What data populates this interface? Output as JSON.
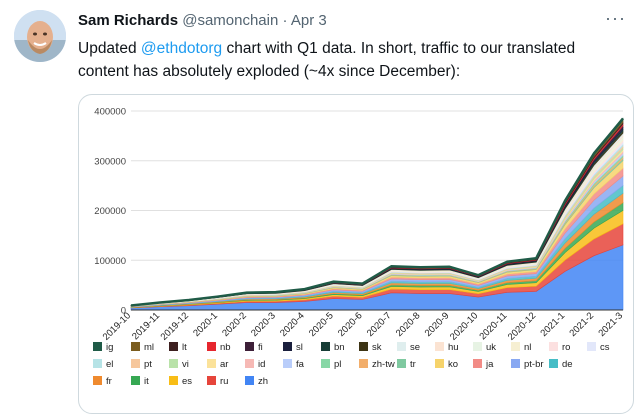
{
  "tweet": {
    "author_name": "Sam Richards",
    "handle": "@samonchain",
    "separator": " · ",
    "date": "Apr 3",
    "more_label": "···",
    "text_before": "Updated ",
    "mention": "@ethdotorg",
    "text_after": " chart with Q1 data. In short, traffic to our translated content has absolutely exploded (~4x since December):"
  },
  "colors": {
    "link": "#1d9bf0",
    "muted": "#536471",
    "border": "#cfd9de"
  },
  "chart_data": {
    "type": "area",
    "stacked": true,
    "x": [
      "2019-10",
      "2019-11",
      "2019-12",
      "2020-1",
      "2020-2",
      "2020-3",
      "2020-4",
      "2020-5",
      "2020-6",
      "2020-7",
      "2020-8",
      "2020-9",
      "2020-10",
      "2020-11",
      "2020-12",
      "2021-1",
      "2021-2",
      "2021-3"
    ],
    "ylim": [
      0,
      400000
    ],
    "yticks": [
      "0",
      "100000",
      "200000",
      "300000",
      "400000"
    ],
    "grid": true,
    "legend_position": "bottom",
    "total": [
      9000,
      15000,
      20000,
      27000,
      35000,
      36000,
      42000,
      57000,
      53000,
      88000,
      86000,
      87000,
      70000,
      97000,
      104000,
      220000,
      315000,
      385000
    ],
    "series": [
      {
        "name": "ig",
        "color": "#1f5b47"
      },
      {
        "name": "ml",
        "color": "#7a5c1e"
      },
      {
        "name": "lt",
        "color": "#3d1f1f"
      },
      {
        "name": "nb",
        "color": "#e6262e"
      },
      {
        "name": "fi",
        "color": "#3d1f38"
      },
      {
        "name": "sl",
        "color": "#1a1f3d"
      },
      {
        "name": "bn",
        "color": "#173d36"
      },
      {
        "name": "sk",
        "color": "#3d3414"
      },
      {
        "name": "se",
        "color": "#dfeeee"
      },
      {
        "name": "hu",
        "color": "#fbe3d2"
      },
      {
        "name": "uk",
        "color": "#e7f3e4"
      },
      {
        "name": "nl",
        "color": "#f6efd2"
      },
      {
        "name": "ro",
        "color": "#fce0e0"
      },
      {
        "name": "cs",
        "color": "#e2e7fa"
      },
      {
        "name": "el",
        "color": "#b6e3e6"
      },
      {
        "name": "pt",
        "color": "#f6c79c"
      },
      {
        "name": "vi",
        "color": "#b9e2a9"
      },
      {
        "name": "ar",
        "color": "#fbe29a"
      },
      {
        "name": "id",
        "color": "#f6b9b5"
      },
      {
        "name": "fa",
        "color": "#b9cdfa"
      },
      {
        "name": "pl",
        "color": "#87d7a6"
      },
      {
        "name": "zh-tw",
        "color": "#f2ae6b"
      },
      {
        "name": "tr",
        "color": "#7fc9a0"
      },
      {
        "name": "ko",
        "color": "#f6d36b"
      },
      {
        "name": "ja",
        "color": "#f28b86"
      },
      {
        "name": "pt-br",
        "color": "#88a8f2"
      },
      {
        "name": "de",
        "color": "#46bdc6"
      },
      {
        "name": "fr",
        "color": "#ef8a2e"
      },
      {
        "name": "it",
        "color": "#36a853"
      },
      {
        "name": "es",
        "color": "#f8bd16"
      },
      {
        "name": "ru",
        "color": "#e6453b"
      },
      {
        "name": "zh",
        "color": "#4285f4"
      }
    ]
  }
}
